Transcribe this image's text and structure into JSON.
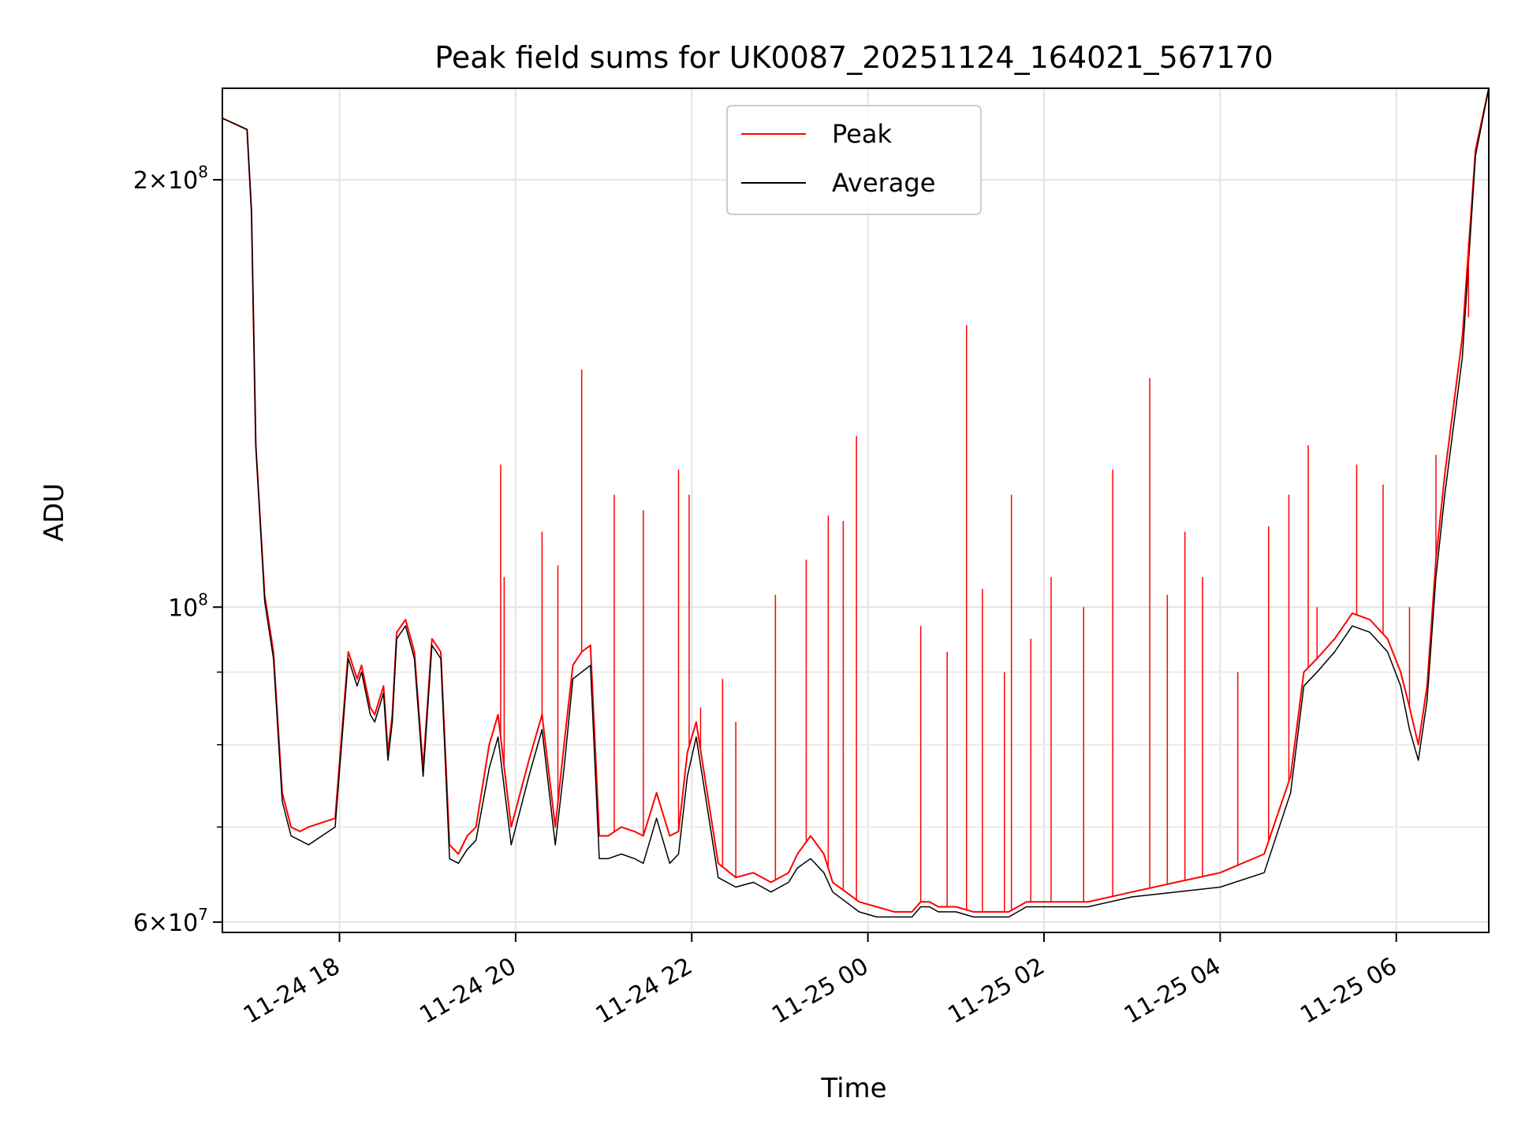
{
  "chart_data": {
    "type": "line",
    "title": "Peak field sums for UK0087_20251124_164021_567170",
    "xlabel": "Time",
    "ylabel": "ADU",
    "yscale": "log",
    "ylim": [
      59000000,
      232000000
    ],
    "xlim_hours": [
      16.67,
      31.05
    ],
    "grid": true,
    "legend_position": "top-center",
    "x_ticks": [
      {
        "hours": 18,
        "label": "11-24 18"
      },
      {
        "hours": 20,
        "label": "11-24 20"
      },
      {
        "hours": 22,
        "label": "11-24 22"
      },
      {
        "hours": 24,
        "label": "11-25 00"
      },
      {
        "hours": 26,
        "label": "11-25 02"
      },
      {
        "hours": 28,
        "label": "11-25 04"
      },
      {
        "hours": 30,
        "label": "11-25 06"
      }
    ],
    "y_ticks": [
      {
        "value": 60000000,
        "mantissa": "6",
        "exponent": "7"
      },
      {
        "value": 100000000,
        "mantissa": "",
        "exponent": "8"
      },
      {
        "value": 200000000,
        "mantissa": "2",
        "exponent": "8"
      }
    ],
    "y_minor_ticks": [
      70000000,
      80000000,
      90000000
    ],
    "series": [
      {
        "name": "Peak",
        "color": "#ff0000",
        "x_hours": [
          16.67,
          16.95,
          17.0,
          17.05,
          17.15,
          17.25,
          17.35,
          17.45,
          17.55,
          17.65,
          17.8,
          17.95,
          18.1,
          18.2,
          18.25,
          18.35,
          18.4,
          18.5,
          18.55,
          18.6,
          18.65,
          18.75,
          18.85,
          18.95,
          19.05,
          19.15,
          19.25,
          19.35,
          19.45,
          19.55,
          19.7,
          19.8,
          19.95,
          20.15,
          20.3,
          20.45,
          20.55,
          20.65,
          20.75,
          20.85,
          20.95,
          21.05,
          21.2,
          21.35,
          21.45,
          21.6,
          21.75,
          21.85,
          21.95,
          22.05,
          22.3,
          22.5,
          22.7,
          22.9,
          23.1,
          23.2,
          23.35,
          23.5,
          23.6,
          23.75,
          23.9,
          24.1,
          24.3,
          24.5,
          24.6,
          24.7,
          24.8,
          25.0,
          25.2,
          25.4,
          25.6,
          25.8,
          26.0,
          26.5,
          27.0,
          27.5,
          28.0,
          28.5,
          28.8,
          28.95,
          29.1,
          29.3,
          29.5,
          29.7,
          29.9,
          30.05,
          30.15,
          30.25,
          30.35,
          30.45,
          30.55,
          30.75,
          30.9,
          31.05
        ],
        "values": [
          221000000,
          217000000,
          190000000,
          130000000,
          102000000,
          93000000,
          74000000,
          70000000,
          69500000,
          70000000,
          70500000,
          71000000,
          93000000,
          89000000,
          91000000,
          85000000,
          84000000,
          88000000,
          79000000,
          84000000,
          96000000,
          98000000,
          93000000,
          77000000,
          95000000,
          93000000,
          68000000,
          67000000,
          69000000,
          70000000,
          80000000,
          84000000,
          70000000,
          78000000,
          84000000,
          70000000,
          80000000,
          91000000,
          93000000,
          94000000,
          69000000,
          69000000,
          70000000,
          69500000,
          69000000,
          74000000,
          69000000,
          69500000,
          79000000,
          83000000,
          66000000,
          64500000,
          65000000,
          64000000,
          65000000,
          67000000,
          69000000,
          67000000,
          64000000,
          63000000,
          62000000,
          61500000,
          61000000,
          61000000,
          62000000,
          62000000,
          61500000,
          61500000,
          61000000,
          61000000,
          61000000,
          62000000,
          62000000,
          62000000,
          63000000,
          64000000,
          65000000,
          67000000,
          76000000,
          90000000,
          92000000,
          95000000,
          99000000,
          98000000,
          95000000,
          90000000,
          85000000,
          80000000,
          88000000,
          108000000,
          124000000,
          155000000,
          210000000,
          232000000
        ]
      },
      {
        "name": "Average",
        "color": "#000000",
        "x_hours": [
          16.67,
          16.95,
          17.0,
          17.05,
          17.15,
          17.25,
          17.35,
          17.45,
          17.55,
          17.65,
          17.8,
          17.95,
          18.1,
          18.2,
          18.25,
          18.35,
          18.4,
          18.5,
          18.55,
          18.6,
          18.65,
          18.75,
          18.85,
          18.95,
          19.05,
          19.15,
          19.25,
          19.35,
          19.45,
          19.55,
          19.7,
          19.8,
          19.95,
          20.15,
          20.3,
          20.45,
          20.55,
          20.65,
          20.75,
          20.85,
          20.95,
          21.05,
          21.2,
          21.35,
          21.45,
          21.6,
          21.75,
          21.85,
          21.95,
          22.05,
          22.3,
          22.5,
          22.7,
          22.9,
          23.1,
          23.2,
          23.35,
          23.5,
          23.6,
          23.75,
          23.9,
          24.1,
          24.3,
          24.5,
          24.6,
          24.7,
          24.8,
          25.0,
          25.2,
          25.4,
          25.6,
          25.8,
          26.0,
          26.5,
          27.0,
          27.5,
          28.0,
          28.5,
          28.8,
          28.95,
          29.1,
          29.3,
          29.5,
          29.7,
          29.9,
          30.05,
          30.15,
          30.25,
          30.35,
          30.45,
          30.55,
          30.75,
          30.9,
          31.05
        ],
        "values": [
          221000000,
          217000000,
          190000000,
          130000000,
          101000000,
          92000000,
          73000000,
          69000000,
          68500000,
          68000000,
          69000000,
          70000000,
          92000000,
          88000000,
          90000000,
          84000000,
          83000000,
          87000000,
          78000000,
          83000000,
          95000000,
          97000000,
          92000000,
          76000000,
          94000000,
          92000000,
          66500000,
          66000000,
          67500000,
          68500000,
          77000000,
          81000000,
          68000000,
          76000000,
          82000000,
          68000000,
          77000000,
          89000000,
          90000000,
          91000000,
          66500000,
          66500000,
          67000000,
          66500000,
          66000000,
          71000000,
          66000000,
          67000000,
          76000000,
          81000000,
          64500000,
          63500000,
          64000000,
          63000000,
          64000000,
          65500000,
          66500000,
          65000000,
          63000000,
          62000000,
          61000000,
          60500000,
          60500000,
          60500000,
          61500000,
          61500000,
          61000000,
          61000000,
          60500000,
          60500000,
          60500000,
          61500000,
          61500000,
          61500000,
          62500000,
          63000000,
          63500000,
          65000000,
          74000000,
          88000000,
          90000000,
          93000000,
          97000000,
          96000000,
          93000000,
          88000000,
          82000000,
          78000000,
          86000000,
          105000000,
          120000000,
          150000000,
          208000000,
          232000000
        ]
      }
    ],
    "peak_spikes": [
      {
        "hours": 19.83,
        "value": 126000000
      },
      {
        "hours": 19.87,
        "value": 105000000
      },
      {
        "hours": 20.3,
        "value": 113000000
      },
      {
        "hours": 20.48,
        "value": 107000000
      },
      {
        "hours": 20.75,
        "value": 147000000
      },
      {
        "hours": 21.12,
        "value": 120000000
      },
      {
        "hours": 21.45,
        "value": 117000000
      },
      {
        "hours": 21.85,
        "value": 125000000
      },
      {
        "hours": 21.97,
        "value": 120000000
      },
      {
        "hours": 22.1,
        "value": 85000000
      },
      {
        "hours": 22.35,
        "value": 89000000
      },
      {
        "hours": 22.5,
        "value": 83000000
      },
      {
        "hours": 22.95,
        "value": 102000000
      },
      {
        "hours": 23.3,
        "value": 108000000
      },
      {
        "hours": 23.55,
        "value": 116000000
      },
      {
        "hours": 23.72,
        "value": 115000000
      },
      {
        "hours": 23.87,
        "value": 132000000
      },
      {
        "hours": 24.6,
        "value": 97000000
      },
      {
        "hours": 24.9,
        "value": 93000000
      },
      {
        "hours": 25.12,
        "value": 158000000
      },
      {
        "hours": 25.3,
        "value": 103000000
      },
      {
        "hours": 25.55,
        "value": 90000000
      },
      {
        "hours": 25.63,
        "value": 120000000
      },
      {
        "hours": 25.85,
        "value": 95000000
      },
      {
        "hours": 26.08,
        "value": 105000000
      },
      {
        "hours": 26.45,
        "value": 100000000
      },
      {
        "hours": 26.78,
        "value": 125000000
      },
      {
        "hours": 27.2,
        "value": 145000000
      },
      {
        "hours": 27.4,
        "value": 102000000
      },
      {
        "hours": 27.6,
        "value": 113000000
      },
      {
        "hours": 27.8,
        "value": 105000000
      },
      {
        "hours": 28.2,
        "value": 90000000
      },
      {
        "hours": 28.55,
        "value": 114000000
      },
      {
        "hours": 28.78,
        "value": 120000000
      },
      {
        "hours": 29.0,
        "value": 130000000
      },
      {
        "hours": 29.1,
        "value": 100000000
      },
      {
        "hours": 29.55,
        "value": 126000000
      },
      {
        "hours": 29.85,
        "value": 122000000
      },
      {
        "hours": 30.15,
        "value": 100000000
      },
      {
        "hours": 30.45,
        "value": 128000000
      },
      {
        "hours": 30.82,
        "value": 160000000
      }
    ]
  }
}
